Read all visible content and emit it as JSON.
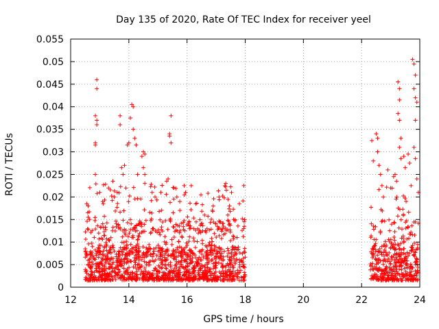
{
  "chart_data": {
    "type": "scatter",
    "title": "Day 135 of 2020, Rate Of TEC Index for receiver yeel",
    "xlabel": "GPS time / hours",
    "ylabel": "ROTI / TECUs",
    "xlim": [
      12,
      24
    ],
    "ylim": [
      0,
      0.055
    ],
    "grid": true,
    "marker": "+",
    "color": "#ff0000",
    "x_ticks": [
      12,
      14,
      16,
      18,
      20,
      22,
      24
    ],
    "x_tick_labels": [
      "12",
      "14",
      "16",
      "18",
      "20",
      "22",
      "24"
    ],
    "y_ticks": [
      0,
      0.005,
      0.01,
      0.015,
      0.02,
      0.025,
      0.03,
      0.035,
      0.04,
      0.045,
      0.05,
      0.055
    ],
    "y_tick_labels": [
      "0",
      "0.005",
      "0.01",
      "0.015",
      "0.02",
      "0.025",
      "0.03",
      "0.035",
      "0.04",
      "0.045",
      "0.05",
      "0.055"
    ],
    "series": [
      {
        "name": "ROTI",
        "segments": [
          {
            "x_start": 12.5,
            "x_end": 18.0
          },
          {
            "x_start": 22.3,
            "x_end": 23.95
          }
        ],
        "points": [
          [
            12.55,
            0.0185
          ],
          [
            12.6,
            0.018
          ],
          [
            12.6,
            0.0155
          ],
          [
            12.65,
            0.015
          ],
          [
            12.9,
            0.046
          ],
          [
            12.9,
            0.044
          ],
          [
            12.85,
            0.038
          ],
          [
            12.9,
            0.037
          ],
          [
            12.9,
            0.036
          ],
          [
            12.85,
            0.032
          ],
          [
            12.85,
            0.0315
          ],
          [
            12.85,
            0.025
          ],
          [
            13.0,
            0.021
          ],
          [
            13.1,
            0.019
          ],
          [
            13.3,
            0.022
          ],
          [
            13.45,
            0.0235
          ],
          [
            13.5,
            0.02
          ],
          [
            13.6,
            0.021
          ],
          [
            13.7,
            0.038
          ],
          [
            13.7,
            0.036
          ],
          [
            13.75,
            0.0265
          ],
          [
            13.8,
            0.025
          ],
          [
            13.85,
            0.027
          ],
          [
            13.9,
            0.022
          ],
          [
            13.95,
            0.0315
          ],
          [
            14.0,
            0.032
          ],
          [
            14.05,
            0.0375
          ],
          [
            14.1,
            0.0405
          ],
          [
            14.15,
            0.04
          ],
          [
            14.15,
            0.035
          ],
          [
            14.2,
            0.033
          ],
          [
            14.25,
            0.0315
          ],
          [
            14.3,
            0.025
          ],
          [
            14.45,
            0.029
          ],
          [
            14.5,
            0.03
          ],
          [
            14.55,
            0.0295
          ],
          [
            14.5,
            0.0265
          ],
          [
            14.55,
            0.025
          ],
          [
            14.55,
            0.023
          ],
          [
            14.8,
            0.021
          ],
          [
            14.9,
            0.02
          ],
          [
            15.1,
            0.021
          ],
          [
            15.35,
            0.024
          ],
          [
            15.3,
            0.0235
          ],
          [
            15.4,
            0.034
          ],
          [
            15.4,
            0.0335
          ],
          [
            15.45,
            0.038
          ],
          [
            15.45,
            0.032
          ],
          [
            15.55,
            0.022
          ],
          [
            15.65,
            0.02
          ],
          [
            15.75,
            0.019
          ],
          [
            15.9,
            0.0225
          ],
          [
            15.95,
            0.021
          ],
          [
            16.3,
            0.0185
          ],
          [
            16.6,
            0.016
          ],
          [
            16.9,
            0.018
          ],
          [
            17.1,
            0.02
          ],
          [
            17.3,
            0.0225
          ],
          [
            17.35,
            0.0215
          ],
          [
            17.4,
            0.016
          ],
          [
            17.6,
            0.015
          ],
          [
            17.8,
            0.0185
          ],
          [
            17.95,
            0.0225
          ],
          [
            17.95,
            0.013
          ],
          [
            22.35,
            0.0325
          ],
          [
            22.4,
            0.028
          ],
          [
            22.5,
            0.034
          ],
          [
            22.55,
            0.033
          ],
          [
            22.55,
            0.03
          ],
          [
            22.6,
            0.027
          ],
          [
            22.65,
            0.025
          ],
          [
            22.7,
            0.0225
          ],
          [
            22.75,
            0.02
          ],
          [
            22.9,
            0.026
          ],
          [
            23.0,
            0.022
          ],
          [
            23.1,
            0.0245
          ],
          [
            23.15,
            0.025
          ],
          [
            23.2,
            0.0235
          ],
          [
            23.25,
            0.0455
          ],
          [
            23.3,
            0.044
          ],
          [
            23.3,
            0.0415
          ],
          [
            23.25,
            0.0385
          ],
          [
            23.3,
            0.037
          ],
          [
            23.35,
            0.033
          ],
          [
            23.3,
            0.031
          ],
          [
            23.35,
            0.0285
          ],
          [
            23.45,
            0.029
          ],
          [
            23.5,
            0.0265
          ],
          [
            23.6,
            0.0295
          ],
          [
            23.65,
            0.0275
          ],
          [
            23.7,
            0.0225
          ],
          [
            23.75,
            0.0505
          ],
          [
            23.8,
            0.0495
          ],
          [
            23.8,
            0.044
          ],
          [
            23.85,
            0.047
          ],
          [
            23.85,
            0.042
          ],
          [
            23.9,
            0.041
          ],
          [
            23.85,
            0.037
          ],
          [
            23.8,
            0.031
          ],
          [
            23.85,
            0.0285
          ],
          [
            23.9,
            0.024
          ],
          [
            23.95,
            0.021
          ]
        ]
      }
    ]
  }
}
